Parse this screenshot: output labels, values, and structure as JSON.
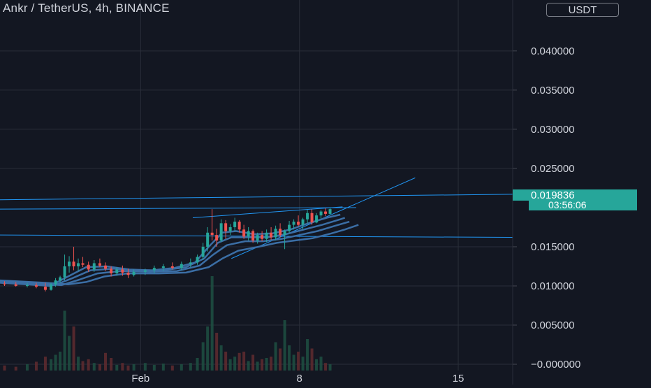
{
  "header": {
    "title": "Ankr / TetherUS, 4h, BINANCE",
    "currency": "USDT"
  },
  "colors": {
    "background": "#131722",
    "grid": "#2a2e39",
    "text": "#d1d4dc",
    "up": "#26a69a",
    "down": "#ef5350",
    "trendline": "#2196f3",
    "ma": "#3b6ea5",
    "price_badge": "#26a69a"
  },
  "chart_data": {
    "type": "candlestick",
    "title": "Ankr / TetherUS, 4h, BINANCE",
    "symbol": "ANKRUSDT",
    "interval": "4h",
    "exchange": "BINANCE",
    "y_axis": {
      "ticks": [
        "0.040000",
        "0.035000",
        "0.030000",
        "0.025000",
        "0.015000",
        "0.010000",
        "0.005000",
        "−0.000000"
      ],
      "tick_values": [
        0.04,
        0.035,
        0.03,
        0.025,
        0.015,
        0.01,
        0.005,
        0.0
      ],
      "range": [
        -0.0008,
        0.0465
      ]
    },
    "x_axis": {
      "ticks": [
        "Feb",
        "8",
        "15"
      ],
      "tick_days": [
        0,
        7,
        14
      ],
      "range_days": [
        -6.2,
        16.4
      ]
    },
    "grid": true,
    "last_price": "0.019836",
    "countdown": "03:56:06",
    "candles": [
      {
        "t": -6.0,
        "o": 0.0103,
        "h": 0.0106,
        "l": 0.01,
        "c": 0.0102
      },
      {
        "t": -5.5,
        "o": 0.0102,
        "h": 0.0105,
        "l": 0.0099,
        "c": 0.01
      },
      {
        "t": -5.0,
        "o": 0.01,
        "h": 0.0104,
        "l": 0.0098,
        "c": 0.0101
      },
      {
        "t": -4.6,
        "o": 0.0101,
        "h": 0.0104,
        "l": 0.0097,
        "c": 0.0099
      },
      {
        "t": -4.2,
        "o": 0.0099,
        "h": 0.0104,
        "l": 0.0093,
        "c": 0.0095
      },
      {
        "t": -3.95,
        "o": 0.0095,
        "h": 0.0104,
        "l": 0.0094,
        "c": 0.0102
      },
      {
        "t": -3.75,
        "o": 0.0102,
        "h": 0.011,
        "l": 0.0099,
        "c": 0.0107
      },
      {
        "t": -3.55,
        "o": 0.0107,
        "h": 0.0113,
        "l": 0.0104,
        "c": 0.0111
      },
      {
        "t": -3.35,
        "o": 0.0111,
        "h": 0.014,
        "l": 0.0107,
        "c": 0.0125
      },
      {
        "t": -3.15,
        "o": 0.0125,
        "h": 0.0138,
        "l": 0.0117,
        "c": 0.0131
      },
      {
        "t": -2.95,
        "o": 0.0131,
        "h": 0.015,
        "l": 0.012,
        "c": 0.0125
      },
      {
        "t": -2.75,
        "o": 0.0125,
        "h": 0.0135,
        "l": 0.0119,
        "c": 0.0129
      },
      {
        "t": -2.55,
        "o": 0.0129,
        "h": 0.0137,
        "l": 0.0124,
        "c": 0.0127
      },
      {
        "t": -2.3,
        "o": 0.0127,
        "h": 0.0131,
        "l": 0.0118,
        "c": 0.0121
      },
      {
        "t": -2.05,
        "o": 0.0121,
        "h": 0.0133,
        "l": 0.0118,
        "c": 0.0129
      },
      {
        "t": -1.8,
        "o": 0.0129,
        "h": 0.0135,
        "l": 0.0124,
        "c": 0.0126
      },
      {
        "t": -1.55,
        "o": 0.0126,
        "h": 0.013,
        "l": 0.0119,
        "c": 0.0122
      },
      {
        "t": -1.3,
        "o": 0.0122,
        "h": 0.0125,
        "l": 0.0112,
        "c": 0.0116
      },
      {
        "t": -1.05,
        "o": 0.0116,
        "h": 0.0124,
        "l": 0.0113,
        "c": 0.0121
      },
      {
        "t": -0.8,
        "o": 0.0121,
        "h": 0.0126,
        "l": 0.0113,
        "c": 0.0117
      },
      {
        "t": -0.55,
        "o": 0.0117,
        "h": 0.0122,
        "l": 0.011,
        "c": 0.0114
      },
      {
        "t": -0.3,
        "o": 0.0114,
        "h": 0.0121,
        "l": 0.0112,
        "c": 0.0118
      },
      {
        "t": 0.2,
        "o": 0.0118,
        "h": 0.0122,
        "l": 0.0114,
        "c": 0.012
      },
      {
        "t": 0.6,
        "o": 0.012,
        "h": 0.0126,
        "l": 0.0116,
        "c": 0.0123
      },
      {
        "t": 1.0,
        "o": 0.0123,
        "h": 0.0128,
        "l": 0.0119,
        "c": 0.0125
      },
      {
        "t": 1.4,
        "o": 0.0125,
        "h": 0.013,
        "l": 0.0121,
        "c": 0.0123
      },
      {
        "t": 1.8,
        "o": 0.0123,
        "h": 0.0131,
        "l": 0.012,
        "c": 0.0128
      },
      {
        "t": 2.2,
        "o": 0.0128,
        "h": 0.0135,
        "l": 0.0124,
        "c": 0.013
      },
      {
        "t": 2.5,
        "o": 0.013,
        "h": 0.014,
        "l": 0.0127,
        "c": 0.0137
      },
      {
        "t": 2.75,
        "o": 0.0137,
        "h": 0.0155,
        "l": 0.0133,
        "c": 0.015
      },
      {
        "t": 2.95,
        "o": 0.015,
        "h": 0.0175,
        "l": 0.0144,
        "c": 0.0168
      },
      {
        "t": 3.15,
        "o": 0.0168,
        "h": 0.0198,
        "l": 0.0158,
        "c": 0.0165
      },
      {
        "t": 3.35,
        "o": 0.0165,
        "h": 0.0173,
        "l": 0.015,
        "c": 0.0158
      },
      {
        "t": 3.55,
        "o": 0.0158,
        "h": 0.0185,
        "l": 0.0156,
        "c": 0.018
      },
      {
        "t": 3.75,
        "o": 0.018,
        "h": 0.0184,
        "l": 0.016,
        "c": 0.017
      },
      {
        "t": 3.95,
        "o": 0.017,
        "h": 0.0179,
        "l": 0.0165,
        "c": 0.0175
      },
      {
        "t": 4.15,
        "o": 0.0175,
        "h": 0.0187,
        "l": 0.017,
        "c": 0.0182
      },
      {
        "t": 4.35,
        "o": 0.0182,
        "h": 0.0184,
        "l": 0.0168,
        "c": 0.0172
      },
      {
        "t": 4.55,
        "o": 0.0172,
        "h": 0.0178,
        "l": 0.016,
        "c": 0.0163
      },
      {
        "t": 4.75,
        "o": 0.0163,
        "h": 0.0175,
        "l": 0.0158,
        "c": 0.017
      },
      {
        "t": 4.95,
        "o": 0.017,
        "h": 0.0172,
        "l": 0.0155,
        "c": 0.0158
      },
      {
        "t": 5.15,
        "o": 0.0158,
        "h": 0.0168,
        "l": 0.0154,
        "c": 0.0165
      },
      {
        "t": 5.35,
        "o": 0.0165,
        "h": 0.017,
        "l": 0.0157,
        "c": 0.016
      },
      {
        "t": 5.55,
        "o": 0.016,
        "h": 0.0172,
        "l": 0.0156,
        "c": 0.0168
      },
      {
        "t": 5.75,
        "o": 0.0168,
        "h": 0.0175,
        "l": 0.0159,
        "c": 0.0162
      },
      {
        "t": 5.95,
        "o": 0.0162,
        "h": 0.0177,
        "l": 0.0158,
        "c": 0.0173
      },
      {
        "t": 6.15,
        "o": 0.0173,
        "h": 0.018,
        "l": 0.0162,
        "c": 0.0165
      },
      {
        "t": 6.35,
        "o": 0.0165,
        "h": 0.0172,
        "l": 0.0147,
        "c": 0.017
      },
      {
        "t": 6.55,
        "o": 0.017,
        "h": 0.0183,
        "l": 0.0168,
        "c": 0.0178
      },
      {
        "t": 6.75,
        "o": 0.0178,
        "h": 0.0185,
        "l": 0.0172,
        "c": 0.0182
      },
      {
        "t": 6.95,
        "o": 0.0182,
        "h": 0.019,
        "l": 0.0176,
        "c": 0.0178
      },
      {
        "t": 7.15,
        "o": 0.0178,
        "h": 0.0187,
        "l": 0.0172,
        "c": 0.0185
      },
      {
        "t": 7.35,
        "o": 0.0185,
        "h": 0.0197,
        "l": 0.018,
        "c": 0.0193
      },
      {
        "t": 7.55,
        "o": 0.0193,
        "h": 0.0198,
        "l": 0.0178,
        "c": 0.0181
      },
      {
        "t": 7.75,
        "o": 0.0181,
        "h": 0.0193,
        "l": 0.018,
        "c": 0.019
      },
      {
        "t": 7.95,
        "o": 0.019,
        "h": 0.0197,
        "l": 0.0186,
        "c": 0.0195
      },
      {
        "t": 8.15,
        "o": 0.0195,
        "h": 0.0199,
        "l": 0.0189,
        "c": 0.0192
      },
      {
        "t": 8.35,
        "o": 0.0192,
        "h": 0.02,
        "l": 0.019,
        "c": 0.0198
      }
    ],
    "volume": [
      {
        "t": -6.0,
        "v": 8,
        "up": false
      },
      {
        "t": -5.5,
        "v": 6,
        "up": false
      },
      {
        "t": -5.0,
        "v": 10,
        "up": true
      },
      {
        "t": -4.6,
        "v": 14,
        "up": false
      },
      {
        "t": -4.2,
        "v": 22,
        "up": false
      },
      {
        "t": -3.95,
        "v": 18,
        "up": true
      },
      {
        "t": -3.75,
        "v": 25,
        "up": true
      },
      {
        "t": -3.55,
        "v": 30,
        "up": true
      },
      {
        "t": -3.35,
        "v": 95,
        "up": true
      },
      {
        "t": -3.15,
        "v": 55,
        "up": true
      },
      {
        "t": -2.95,
        "v": 70,
        "up": false
      },
      {
        "t": -2.75,
        "v": 22,
        "up": true
      },
      {
        "t": -2.55,
        "v": 15,
        "up": false
      },
      {
        "t": -2.3,
        "v": 18,
        "up": false
      },
      {
        "t": -2.05,
        "v": 12,
        "up": true
      },
      {
        "t": -1.8,
        "v": 10,
        "up": false
      },
      {
        "t": -1.55,
        "v": 28,
        "up": false
      },
      {
        "t": -1.3,
        "v": 20,
        "up": false
      },
      {
        "t": -1.05,
        "v": 9,
        "up": true
      },
      {
        "t": -0.8,
        "v": 12,
        "up": false
      },
      {
        "t": -0.55,
        "v": 8,
        "up": false
      },
      {
        "t": -0.3,
        "v": 10,
        "up": true
      },
      {
        "t": 0.2,
        "v": 12,
        "up": true
      },
      {
        "t": 0.6,
        "v": 9,
        "up": true
      },
      {
        "t": 1.0,
        "v": 11,
        "up": true
      },
      {
        "t": 1.4,
        "v": 8,
        "up": false
      },
      {
        "t": 1.8,
        "v": 10,
        "up": true
      },
      {
        "t": 2.2,
        "v": 12,
        "up": true
      },
      {
        "t": 2.5,
        "v": 20,
        "up": true
      },
      {
        "t": 2.75,
        "v": 45,
        "up": true
      },
      {
        "t": 2.95,
        "v": 70,
        "up": true
      },
      {
        "t": 3.15,
        "v": 150,
        "up": true
      },
      {
        "t": 3.35,
        "v": 60,
        "up": false
      },
      {
        "t": 3.55,
        "v": 40,
        "up": true
      },
      {
        "t": 3.75,
        "v": 30,
        "up": false
      },
      {
        "t": 3.95,
        "v": 18,
        "up": true
      },
      {
        "t": 4.15,
        "v": 22,
        "up": true
      },
      {
        "t": 4.35,
        "v": 28,
        "up": false
      },
      {
        "t": 4.55,
        "v": 30,
        "up": false
      },
      {
        "t": 4.75,
        "v": 15,
        "up": true
      },
      {
        "t": 4.95,
        "v": 25,
        "up": false
      },
      {
        "t": 5.15,
        "v": 14,
        "up": true
      },
      {
        "t": 5.35,
        "v": 18,
        "up": false
      },
      {
        "t": 5.55,
        "v": 20,
        "up": true
      },
      {
        "t": 5.75,
        "v": 22,
        "up": false
      },
      {
        "t": 5.95,
        "v": 45,
        "up": true
      },
      {
        "t": 6.15,
        "v": 35,
        "up": false
      },
      {
        "t": 6.35,
        "v": 80,
        "up": true
      },
      {
        "t": 6.55,
        "v": 40,
        "up": true
      },
      {
        "t": 6.75,
        "v": 25,
        "up": true
      },
      {
        "t": 6.95,
        "v": 30,
        "up": false
      },
      {
        "t": 7.15,
        "v": 22,
        "up": true
      },
      {
        "t": 7.35,
        "v": 50,
        "up": true
      },
      {
        "t": 7.55,
        "v": 35,
        "up": false
      },
      {
        "t": 7.75,
        "v": 18,
        "up": true
      },
      {
        "t": 7.95,
        "v": 22,
        "up": true
      },
      {
        "t": 8.15,
        "v": 12,
        "up": false
      },
      {
        "t": 8.35,
        "v": 10,
        "up": true
      }
    ],
    "moving_averages": [
      [
        [
          -6.2,
          0.0104
        ],
        [
          -5.0,
          0.0102
        ],
        [
          -4.0,
          0.01
        ],
        [
          -3.2,
          0.0112
        ],
        [
          -2.4,
          0.0124
        ],
        [
          -1.5,
          0.0125
        ],
        [
          -0.5,
          0.0121
        ],
        [
          0.5,
          0.012
        ],
        [
          1.5,
          0.0123
        ],
        [
          2.4,
          0.013
        ],
        [
          3.0,
          0.015
        ],
        [
          3.6,
          0.0168
        ],
        [
          4.2,
          0.017
        ],
        [
          5.0,
          0.0166
        ],
        [
          5.8,
          0.0167
        ],
        [
          6.6,
          0.0172
        ],
        [
          7.4,
          0.018
        ],
        [
          8.2,
          0.0187
        ],
        [
          8.8,
          0.0191
        ]
      ],
      [
        [
          -6.2,
          0.0105
        ],
        [
          -4.6,
          0.0102
        ],
        [
          -3.8,
          0.0101
        ],
        [
          -3.0,
          0.011
        ],
        [
          -2.2,
          0.012
        ],
        [
          -1.2,
          0.0122
        ],
        [
          -0.2,
          0.012
        ],
        [
          1.0,
          0.012
        ],
        [
          2.0,
          0.0124
        ],
        [
          2.8,
          0.0135
        ],
        [
          3.4,
          0.0155
        ],
        [
          4.0,
          0.0162
        ],
        [
          4.8,
          0.0162
        ],
        [
          5.6,
          0.0162
        ],
        [
          6.4,
          0.0166
        ],
        [
          7.2,
          0.0172
        ],
        [
          8.0,
          0.0178
        ],
        [
          8.8,
          0.0185
        ],
        [
          9.0,
          0.0187
        ]
      ],
      [
        [
          -6.2,
          0.0106
        ],
        [
          -4.4,
          0.0103
        ],
        [
          -3.5,
          0.0101
        ],
        [
          -2.7,
          0.0108
        ],
        [
          -1.9,
          0.0116
        ],
        [
          -0.9,
          0.0119
        ],
        [
          0.4,
          0.0118
        ],
        [
          1.6,
          0.0119
        ],
        [
          2.6,
          0.0126
        ],
        [
          3.2,
          0.014
        ],
        [
          3.8,
          0.0152
        ],
        [
          4.6,
          0.0157
        ],
        [
          5.4,
          0.0157
        ],
        [
          6.2,
          0.016
        ],
        [
          7.0,
          0.0165
        ],
        [
          7.8,
          0.017
        ],
        [
          8.6,
          0.0177
        ],
        [
          9.2,
          0.0182
        ]
      ],
      [
        [
          -6.2,
          0.0107
        ],
        [
          -4.2,
          0.0104
        ],
        [
          -3.2,
          0.0102
        ],
        [
          -2.4,
          0.0105
        ],
        [
          -1.6,
          0.0112
        ],
        [
          -0.6,
          0.0116
        ],
        [
          0.8,
          0.0116
        ],
        [
          2.0,
          0.0117
        ],
        [
          3.0,
          0.0124
        ],
        [
          3.6,
          0.0135
        ],
        [
          4.3,
          0.0145
        ],
        [
          5.2,
          0.015
        ],
        [
          6.0,
          0.0155
        ],
        [
          6.8,
          0.0158
        ],
        [
          7.6,
          0.0161
        ],
        [
          8.4,
          0.0167
        ],
        [
          9.0,
          0.0172
        ],
        [
          9.6,
          0.0178
        ]
      ]
    ],
    "trendlines": [
      {
        "from": [
          -6.2,
          0.021
        ],
        "to": [
          16.4,
          0.0217
        ]
      },
      {
        "from": [
          -6.2,
          0.0198
        ],
        "to": [
          9.5,
          0.02
        ]
      },
      {
        "from": [
          -6.2,
          0.0165
        ],
        "to": [
          16.4,
          0.0162
        ]
      },
      {
        "from": [
          2.3,
          0.0187
        ],
        "to": [
          8.9,
          0.0201
        ]
      },
      {
        "from": [
          4.0,
          0.0135
        ],
        "to": [
          12.1,
          0.0238
        ]
      }
    ]
  }
}
